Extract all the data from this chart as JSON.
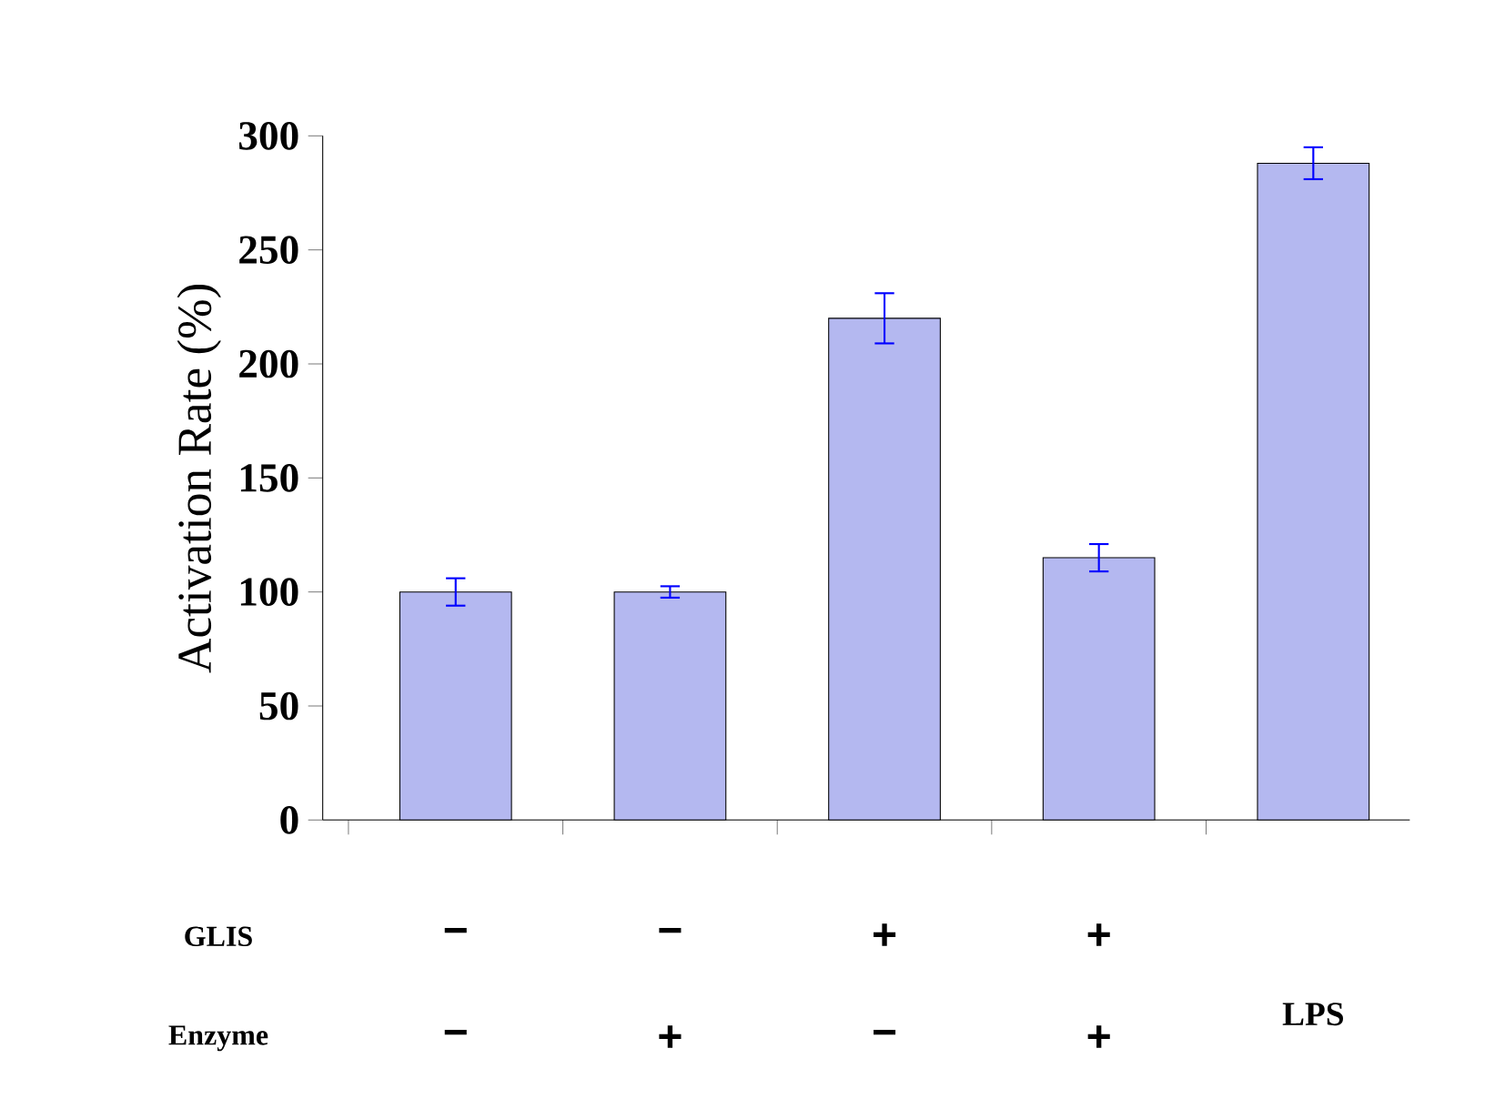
{
  "chart_data": {
    "type": "bar",
    "ylabel": "Activation Rate (%)",
    "categories": [
      null,
      null,
      null,
      null,
      null
    ],
    "values": [
      100,
      100,
      220,
      115,
      288
    ],
    "errors": [
      6,
      2.5,
      11,
      6,
      7
    ],
    "color": "#b4b8f0",
    "ylim": [
      0,
      300
    ],
    "yticks": [
      0,
      50,
      100,
      150,
      200,
      250,
      300
    ],
    "tick_labels": "y",
    "annotations": [
      "GLIS",
      "Enzyme",
      "−",
      "−",
      "−",
      "+",
      "+",
      "−",
      "+",
      "+",
      "LPS"
    ]
  }
}
